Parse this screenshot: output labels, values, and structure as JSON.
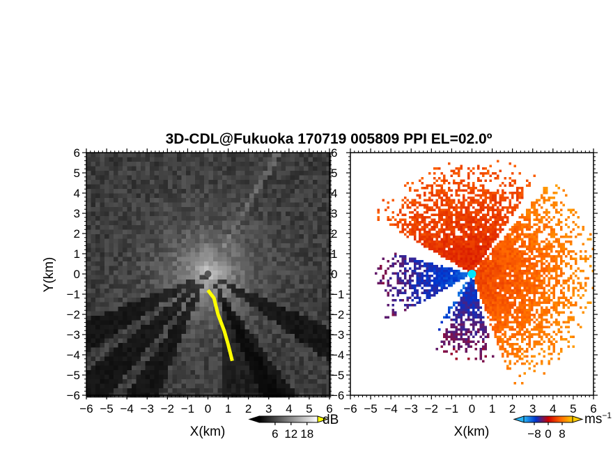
{
  "figure_title": "3D-CDL@Fukuoka 170719 005809 PPI EL=02.0º",
  "chart_data": [
    {
      "type": "heatmap",
      "name": "backscatter",
      "title": "",
      "xlabel": "X(km)",
      "ylabel": "Y(km)",
      "xlim": [
        -6,
        6
      ],
      "ylim": [
        -6,
        6
      ],
      "xticks": [
        "−6",
        "−5",
        "−4",
        "−3",
        "−2",
        "−1",
        "0",
        "1",
        "2",
        "3",
        "4",
        "5",
        "6"
      ],
      "yticks": [
        "6",
        "5",
        "4",
        "3",
        "2",
        "1",
        "0",
        "−1",
        "−2",
        "−3",
        "−4",
        "−5",
        "−6"
      ],
      "colorbar": {
        "unit": "dB",
        "ticks": [
          "6",
          "12",
          "18"
        ],
        "tick_values": [
          6,
          12,
          18
        ],
        "range": [
          0,
          22
        ],
        "colors": [
          "#000000",
          "#ffffff"
        ],
        "overflow_color": "#ffff00"
      },
      "sector_shadows_deg": [
        120,
        150,
        208,
        225,
        243
      ],
      "highlight_color": "#ffff00",
      "highlight_path": [
        [
          0.0,
          -0.8
        ],
        [
          0.3,
          -1.2
        ],
        [
          0.5,
          -2.0
        ],
        [
          0.8,
          -2.8
        ],
        [
          1.0,
          -3.5
        ],
        [
          1.2,
          -4.3
        ]
      ]
    },
    {
      "type": "heatmap",
      "name": "doppler-velocity",
      "title": "",
      "xlabel": "X(km)",
      "ylabel": "",
      "xlim": [
        -6,
        6
      ],
      "ylim": [
        -6,
        6
      ],
      "xticks": [
        "−6",
        "−5",
        "−4",
        "−3",
        "−2",
        "−1",
        "0",
        "1",
        "2",
        "3",
        "4",
        "5",
        "6"
      ],
      "yticks": [
        "6",
        "5",
        "4",
        "3",
        "2",
        "1",
        "0",
        "−1",
        "−2",
        "−3",
        "−4",
        "−5",
        "−6"
      ],
      "colorbar": {
        "unit": "ms",
        "unit_exp": "−1",
        "ticks": [
          "−8",
          "0",
          "8"
        ],
        "tick_values": [
          -8,
          0,
          8
        ],
        "range": [
          -14,
          14
        ],
        "colors": [
          "#29b6f6",
          "#0033cc",
          "#cc0000",
          "#ff6600",
          "#ffcc00"
        ]
      },
      "radar_marker_color": "#00e5ff",
      "regions": [
        {
          "desc": "outbound NE-E-SE",
          "az_start": 40,
          "az_end": 160,
          "r_max": 6.2,
          "v_min": 2,
          "v_max": 10
        },
        {
          "desc": "outbound N-NW",
          "az_start": -60,
          "az_end": 35,
          "r_max": 5.8,
          "v_min": 1,
          "v_max": 6
        },
        {
          "desc": "inbound S-SE",
          "az_start": 165,
          "az_end": 205,
          "r_max": 4.5,
          "v_min": -10,
          "v_max": -2
        },
        {
          "desc": "inbound W-SW",
          "az_start": 240,
          "az_end": 285,
          "r_max": 4.8,
          "v_min": -12,
          "v_max": -3
        },
        {
          "desc": "inbound SW stripe",
          "az_start": 207,
          "az_end": 215,
          "r_max": 3.2,
          "v_min": -13,
          "v_max": -7
        }
      ]
    }
  ]
}
